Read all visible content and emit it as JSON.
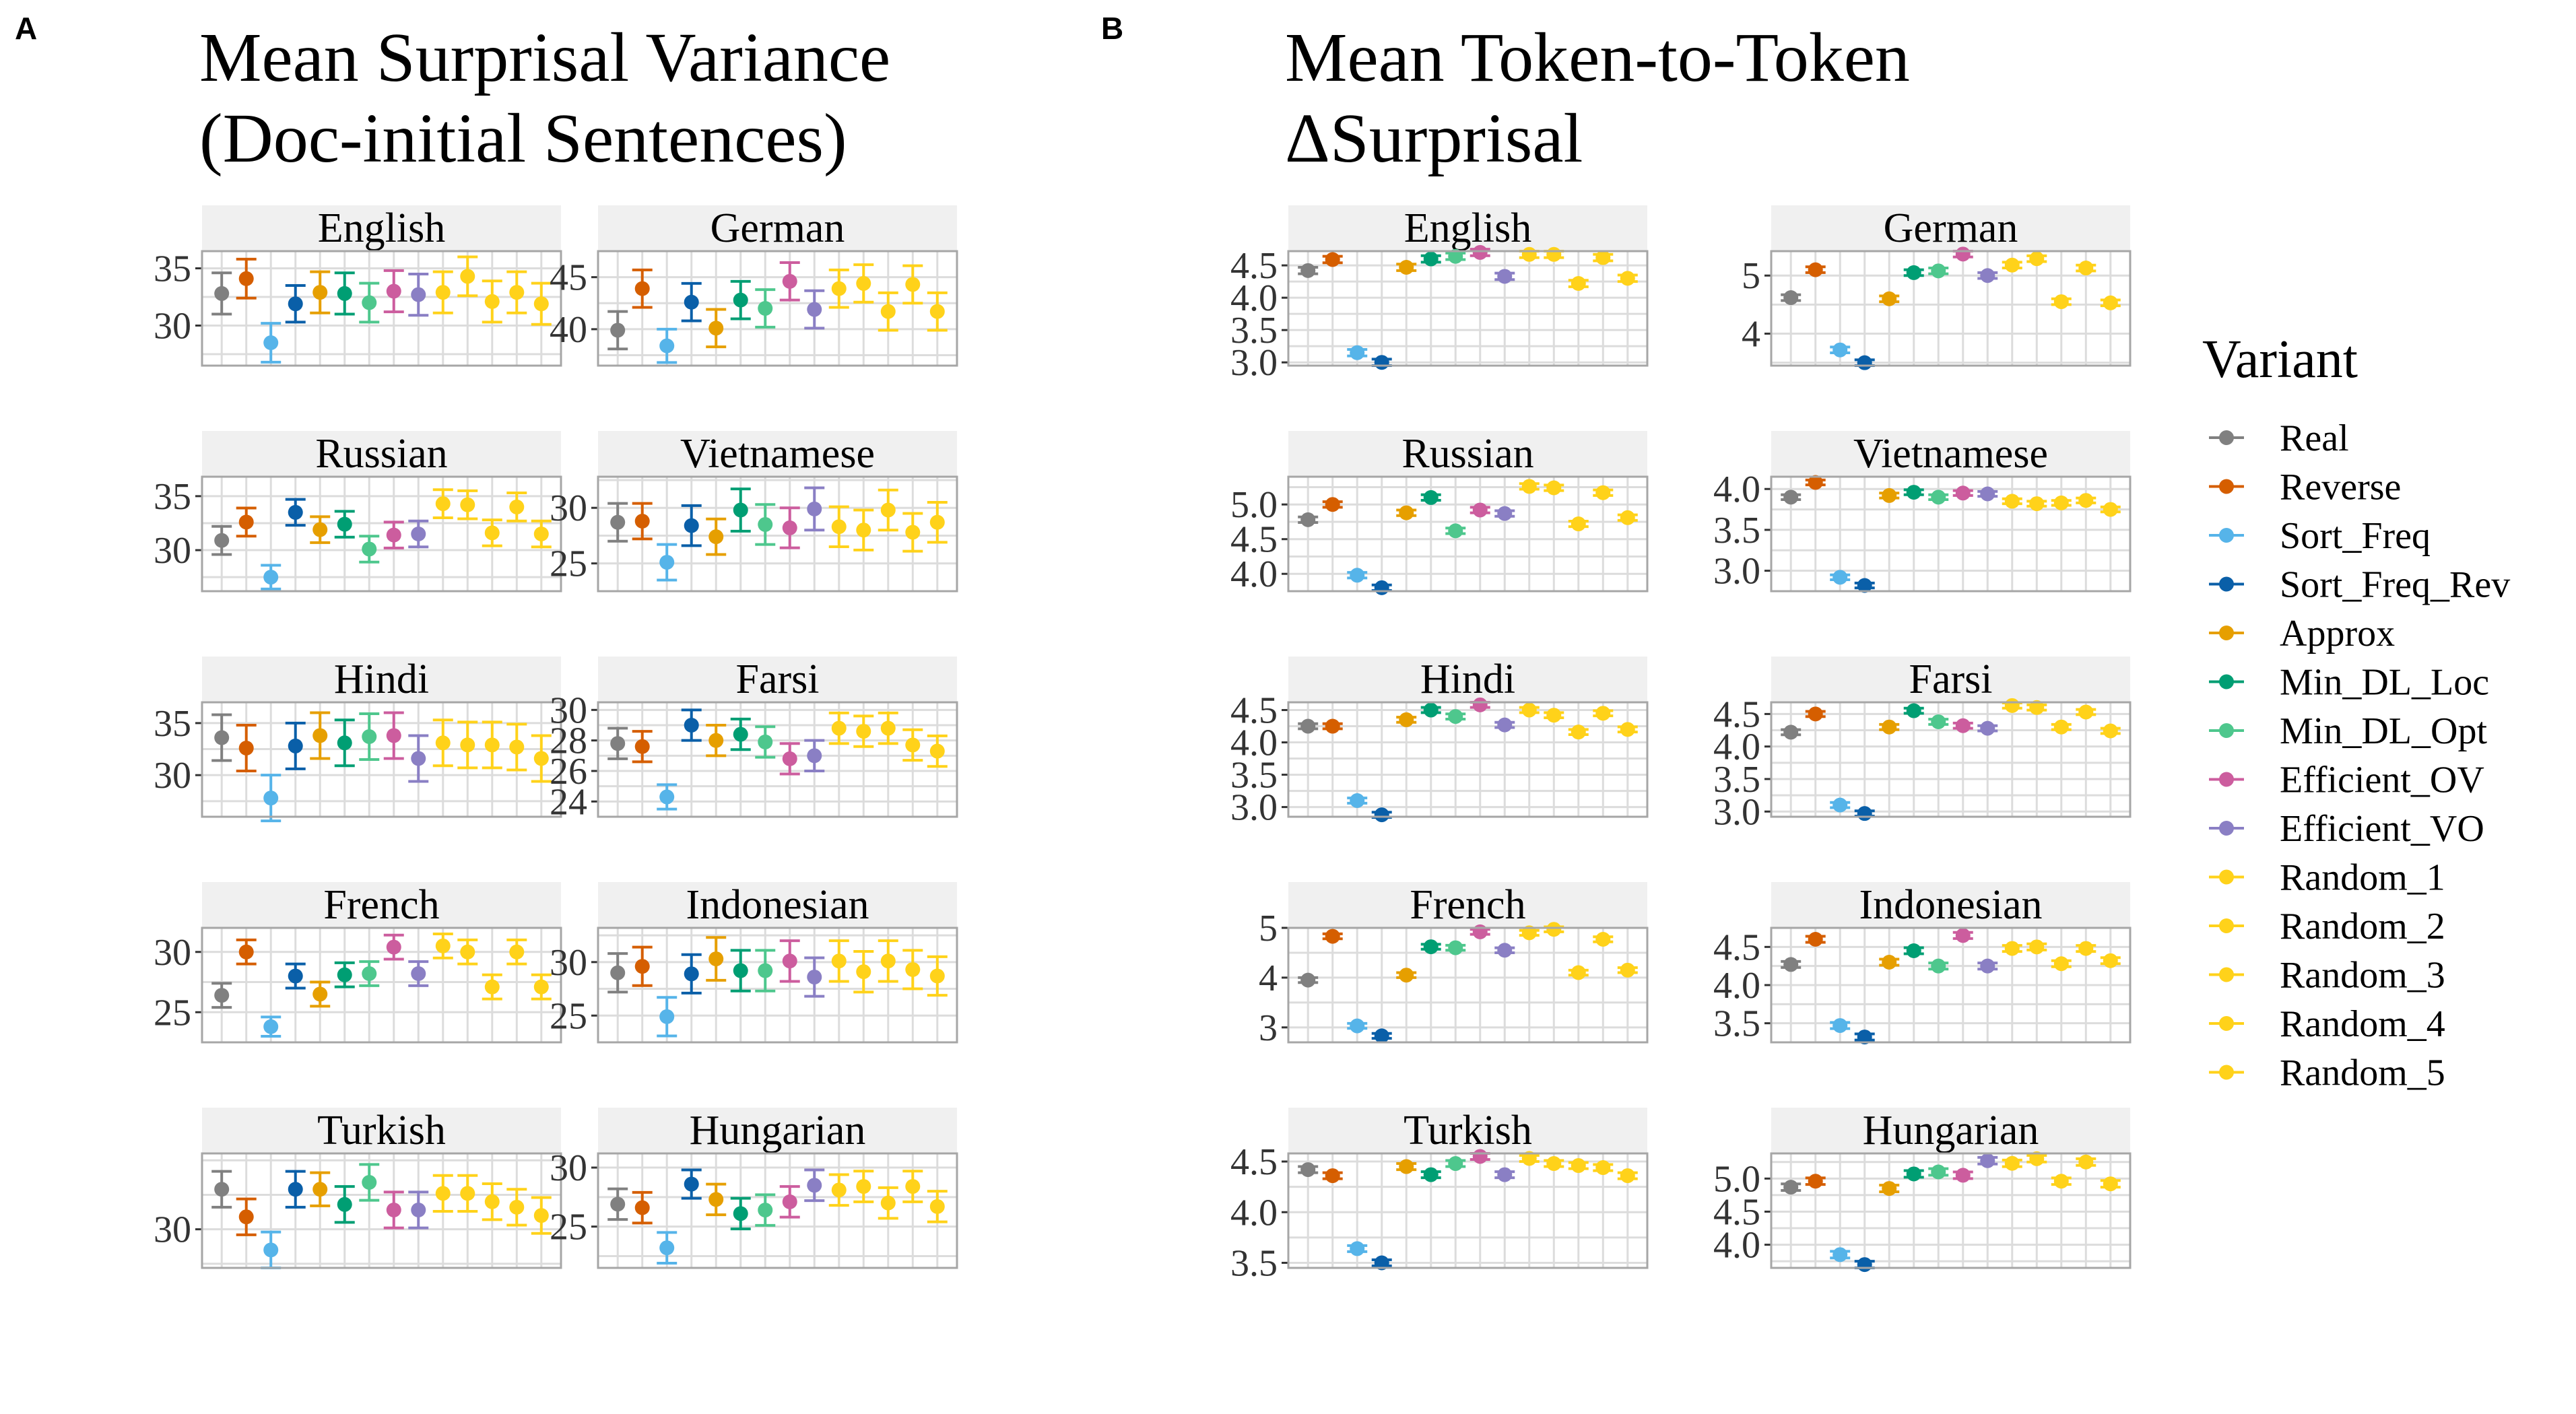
{
  "figure": {
    "panels": [
      {
        "letter": "A",
        "title_line1": "Mean Surprisal Variance",
        "title_line2": "(Doc-initial Sentences)"
      },
      {
        "letter": "B",
        "title_line1": "Mean Token-to-Token",
        "title_line2": "ΔSurprisal"
      }
    ],
    "legend": {
      "title": "Variant",
      "items": [
        {
          "label": "Real",
          "color": "#808080"
        },
        {
          "label": "Reverse",
          "color": "#D55E00"
        },
        {
          "label": "Sort_Freq",
          "color": "#56B4E9"
        },
        {
          "label": "Sort_Freq_Rev",
          "color": "#0A5FA8"
        },
        {
          "label": "Approx",
          "color": "#E69F00"
        },
        {
          "label": "Min_DL_Loc",
          "color": "#009E73"
        },
        {
          "label": "Min_DL_Opt",
          "color": "#4EC78D"
        },
        {
          "label": "Efficient_OV",
          "color": "#CC5D9E"
        },
        {
          "label": "Efficient_VO",
          "color": "#8A7FC4"
        },
        {
          "label": "Random_1",
          "color": "#FFD21A"
        },
        {
          "label": "Random_2",
          "color": "#FFD21A"
        },
        {
          "label": "Random_3",
          "color": "#FFD21A"
        },
        {
          "label": "Random_4",
          "color": "#FFD21A"
        },
        {
          "label": "Random_5",
          "color": "#FFD21A"
        }
      ]
    }
  },
  "chart_data": [
    {
      "type": "scatter",
      "panel": "A",
      "title": "Mean Surprisal Variance (Doc-initial Sentences)",
      "x_categories": [
        "Real",
        "Reverse",
        "Sort_Freq",
        "Sort_Freq_Rev",
        "Approx",
        "Min_DL_Loc",
        "Min_DL_Opt",
        "Efficient_OV",
        "Efficient_VO",
        "Random_1",
        "Random_2",
        "Random_3",
        "Random_4",
        "Random_5"
      ],
      "facets": [
        {
          "name": "English",
          "ylim": [
            26.5,
            36.5
          ],
          "yticks": [
            30,
            35
          ],
          "tick_labels": [
            "30",
            "35"
          ],
          "values": [
            32.8,
            34.1,
            28.5,
            31.9,
            32.9,
            32.8,
            32.0,
            33.0,
            32.7,
            32.9,
            34.3,
            32.1,
            32.9,
            31.9
          ],
          "errors": [
            1.8,
            1.7,
            1.7,
            1.6,
            1.8,
            1.8,
            1.7,
            1.8,
            1.8,
            1.8,
            1.7,
            1.8,
            1.8,
            1.8
          ]
        },
        {
          "name": "German",
          "ylim": [
            36.5,
            47.5
          ],
          "yticks": [
            40,
            45
          ],
          "tick_labels": [
            "40",
            "45"
          ],
          "values": [
            39.9,
            43.9,
            38.4,
            42.6,
            40.1,
            42.8,
            42.0,
            44.6,
            41.9,
            43.9,
            44.4,
            41.7,
            44.3,
            41.7
          ],
          "errors": [
            1.8,
            1.8,
            1.6,
            1.8,
            1.8,
            1.8,
            1.8,
            1.8,
            1.8,
            1.8,
            1.8,
            1.8,
            1.8,
            1.8
          ]
        },
        {
          "name": "Russian",
          "ylim": [
            26.2,
            36.8
          ],
          "yticks": [
            30,
            35
          ],
          "tick_labels": [
            "30",
            "35"
          ],
          "values": [
            30.9,
            32.6,
            27.5,
            33.5,
            31.9,
            32.4,
            30.1,
            31.4,
            31.5,
            34.3,
            34.2,
            31.6,
            34.0,
            31.5
          ],
          "errors": [
            1.3,
            1.3,
            1.1,
            1.2,
            1.2,
            1.2,
            1.2,
            1.2,
            1.2,
            1.3,
            1.3,
            1.2,
            1.3,
            1.2
          ]
        },
        {
          "name": "Vietnamese",
          "ylim": [
            22.5,
            32.8
          ],
          "yticks": [
            25,
            30
          ],
          "tick_labels": [
            "25",
            "30"
          ],
          "values": [
            28.7,
            28.8,
            25.1,
            28.4,
            27.4,
            29.8,
            28.5,
            28.2,
            29.9,
            28.3,
            28.0,
            29.8,
            27.8,
            28.7
          ],
          "errors": [
            1.7,
            1.6,
            1.6,
            1.8,
            1.6,
            1.9,
            1.8,
            1.8,
            1.9,
            1.8,
            1.8,
            1.8,
            1.7,
            1.8
          ]
        },
        {
          "name": "Hindi",
          "ylim": [
            26.0,
            37.0
          ],
          "yticks": [
            30,
            35
          ],
          "tick_labels": [
            "30",
            "35"
          ],
          "values": [
            33.6,
            32.6,
            27.8,
            32.8,
            33.8,
            33.1,
            33.7,
            33.8,
            31.6,
            33.1,
            32.9,
            32.9,
            32.7,
            31.6
          ],
          "errors": [
            2.2,
            2.2,
            2.2,
            2.2,
            2.2,
            2.2,
            2.2,
            2.2,
            2.2,
            2.2,
            2.2,
            2.2,
            2.2,
            2.2
          ]
        },
        {
          "name": "Farsi",
          "ylim": [
            23.0,
            30.5
          ],
          "yticks": [
            24,
            26,
            28,
            30
          ],
          "tick_labels": [
            "24",
            "26",
            "28",
            "30"
          ],
          "values": [
            27.8,
            27.6,
            24.3,
            29.0,
            28.0,
            28.4,
            27.9,
            26.8,
            27.0,
            28.8,
            28.6,
            28.8,
            27.7,
            27.3
          ],
          "errors": [
            1.0,
            1.0,
            0.8,
            1.0,
            1.0,
            1.0,
            1.0,
            1.0,
            1.0,
            1.0,
            1.0,
            1.0,
            1.0,
            1.0
          ]
        },
        {
          "name": "French",
          "ylim": [
            22.5,
            32.0
          ],
          "yticks": [
            25,
            30
          ],
          "tick_labels": [
            "25",
            "30"
          ],
          "values": [
            26.4,
            30.0,
            23.8,
            28.0,
            26.5,
            28.1,
            28.2,
            30.4,
            28.2,
            30.5,
            30.0,
            27.1,
            30.0,
            27.1
          ],
          "errors": [
            1.0,
            1.0,
            0.8,
            1.0,
            1.0,
            1.0,
            1.0,
            1.0,
            1.0,
            1.0,
            1.0,
            1.0,
            1.0,
            1.0
          ]
        },
        {
          "name": "Indonesian",
          "ylim": [
            22.5,
            33.2
          ],
          "yticks": [
            25,
            30
          ],
          "tick_labels": [
            "25",
            "30"
          ],
          "values": [
            29.0,
            29.6,
            24.9,
            28.9,
            30.3,
            29.2,
            29.2,
            30.1,
            28.6,
            30.1,
            29.1,
            30.1,
            29.3,
            28.7
          ],
          "errors": [
            1.8,
            1.8,
            1.8,
            1.8,
            2.0,
            1.9,
            1.9,
            1.9,
            1.8,
            1.9,
            1.9,
            1.9,
            1.8,
            1.8
          ]
        },
        {
          "name": "Turkish",
          "ylim": [
            27.2,
            35.5
          ],
          "yticks": [
            30
          ],
          "tick_labels": [
            "30"
          ],
          "values": [
            32.9,
            30.9,
            28.5,
            32.9,
            32.9,
            31.8,
            33.4,
            31.4,
            31.4,
            32.6,
            32.6,
            32.0,
            31.6,
            31.0
          ],
          "errors": [
            1.3,
            1.3,
            1.3,
            1.3,
            1.2,
            1.3,
            1.3,
            1.3,
            1.3,
            1.3,
            1.3,
            1.3,
            1.3,
            1.3
          ]
        },
        {
          "name": "Hungarian",
          "ylim": [
            21.5,
            31.2
          ],
          "yticks": [
            25,
            30
          ],
          "tick_labels": [
            "25",
            "30"
          ],
          "values": [
            26.9,
            26.6,
            23.2,
            28.6,
            27.3,
            26.1,
            26.4,
            27.1,
            28.5,
            28.1,
            28.4,
            27.0,
            28.4,
            26.7
          ],
          "errors": [
            1.3,
            1.3,
            1.3,
            1.2,
            1.3,
            1.3,
            1.3,
            1.3,
            1.3,
            1.3,
            1.3,
            1.3,
            1.3,
            1.3
          ]
        }
      ]
    },
    {
      "type": "scatter",
      "panel": "B",
      "title": "Mean Token-to-Token ΔSurprisal",
      "x_categories": [
        "Real",
        "Reverse",
        "Sort_Freq",
        "Sort_Freq_Rev",
        "Approx",
        "Min_DL_Loc",
        "Min_DL_Opt",
        "Efficient_OV",
        "Efficient_VO",
        "Random_1",
        "Random_2",
        "Random_3",
        "Random_4",
        "Random_5"
      ],
      "facets": [
        {
          "name": "English",
          "ylim": [
            2.95,
            4.72
          ],
          "yticks": [
            3.0,
            3.5,
            4.0,
            4.5
          ],
          "tick_labels": [
            "3.0",
            "3.5",
            "4.0",
            "4.5"
          ],
          "values": [
            4.42,
            4.59,
            3.15,
            3.0,
            4.47,
            4.6,
            4.64,
            4.7,
            4.33,
            4.67,
            4.67,
            4.22,
            4.62,
            4.3
          ],
          "errors": [
            0.05,
            0.05,
            0.05,
            0.05,
            0.05,
            0.05,
            0.05,
            0.05,
            0.05,
            0.05,
            0.05,
            0.05,
            0.05,
            0.05
          ]
        },
        {
          "name": "German",
          "ylim": [
            3.45,
            5.42
          ],
          "yticks": [
            4,
            5
          ],
          "tick_labels": [
            "4",
            "5"
          ],
          "values": [
            4.62,
            5.1,
            3.72,
            3.5,
            4.6,
            5.05,
            5.08,
            5.37,
            5.0,
            5.18,
            5.29,
            4.55,
            5.13,
            4.53
          ],
          "errors": [
            0.05,
            0.05,
            0.05,
            0.05,
            0.05,
            0.05,
            0.05,
            0.05,
            0.05,
            0.05,
            0.05,
            0.05,
            0.05,
            0.05
          ]
        },
        {
          "name": "Russian",
          "ylim": [
            3.75,
            5.4
          ],
          "yticks": [
            4.0,
            4.5,
            5.0
          ],
          "tick_labels": [
            "4.0",
            "4.5",
            "5.0"
          ],
          "values": [
            4.78,
            5.0,
            3.98,
            3.8,
            4.88,
            5.1,
            4.62,
            4.92,
            4.87,
            5.26,
            5.24,
            4.72,
            5.17,
            4.81
          ],
          "errors": [
            0.04,
            0.04,
            0.04,
            0.04,
            0.04,
            0.04,
            0.04,
            0.04,
            0.04,
            0.04,
            0.04,
            0.04,
            0.04,
            0.04
          ]
        },
        {
          "name": "Vietnamese",
          "ylim": [
            2.75,
            4.15
          ],
          "yticks": [
            3.0,
            3.5,
            4.0
          ],
          "tick_labels": [
            "3.0",
            "3.5",
            "4.0"
          ],
          "values": [
            3.9,
            4.08,
            2.92,
            2.82,
            3.92,
            3.96,
            3.9,
            3.95,
            3.94,
            3.85,
            3.82,
            3.83,
            3.86,
            3.75
          ],
          "errors": [
            0.03,
            0.03,
            0.03,
            0.03,
            0.03,
            0.03,
            0.03,
            0.03,
            0.03,
            0.03,
            0.03,
            0.03,
            0.03,
            0.03
          ]
        },
        {
          "name": "Hindi",
          "ylim": [
            2.85,
            4.62
          ],
          "yticks": [
            3.0,
            3.5,
            4.0,
            4.5
          ],
          "tick_labels": [
            "3.0",
            "3.5",
            "4.0",
            "4.5"
          ],
          "values": [
            4.25,
            4.25,
            3.1,
            2.88,
            4.35,
            4.5,
            4.4,
            4.58,
            4.27,
            4.5,
            4.42,
            4.16,
            4.45,
            4.2
          ],
          "errors": [
            0.04,
            0.04,
            0.04,
            0.04,
            0.04,
            0.04,
            0.04,
            0.04,
            0.04,
            0.04,
            0.04,
            0.04,
            0.04,
            0.04
          ]
        },
        {
          "name": "Farsi",
          "ylim": [
            2.92,
            4.68
          ],
          "yticks": [
            3.0,
            3.5,
            4.0,
            4.5
          ],
          "tick_labels": [
            "3.0",
            "3.5",
            "4.0",
            "4.5"
          ],
          "values": [
            4.22,
            4.5,
            3.1,
            2.97,
            4.3,
            4.55,
            4.38,
            4.32,
            4.28,
            4.63,
            4.6,
            4.3,
            4.53,
            4.24
          ],
          "errors": [
            0.04,
            0.04,
            0.04,
            0.04,
            0.04,
            0.04,
            0.04,
            0.04,
            0.04,
            0.04,
            0.04,
            0.04,
            0.04,
            0.04
          ]
        },
        {
          "name": "French",
          "ylim": [
            2.7,
            5.0
          ],
          "yticks": [
            3,
            4,
            5
          ],
          "tick_labels": [
            "3",
            "4",
            "5"
          ],
          "values": [
            3.95,
            4.83,
            3.03,
            2.83,
            4.05,
            4.62,
            4.6,
            4.92,
            4.55,
            4.9,
            4.97,
            4.1,
            4.77,
            4.15
          ],
          "errors": [
            0.05,
            0.05,
            0.05,
            0.05,
            0.05,
            0.05,
            0.05,
            0.05,
            0.05,
            0.05,
            0.05,
            0.05,
            0.05,
            0.05
          ]
        },
        {
          "name": "Indonesian",
          "ylim": [
            3.25,
            4.75
          ],
          "yticks": [
            3.5,
            4.0,
            4.5
          ],
          "tick_labels": [
            "3.5",
            "4.0",
            "4.5"
          ],
          "values": [
            4.27,
            4.6,
            3.47,
            3.32,
            4.3,
            4.45,
            4.25,
            4.65,
            4.25,
            4.48,
            4.5,
            4.28,
            4.48,
            4.32
          ],
          "errors": [
            0.04,
            0.04,
            0.04,
            0.04,
            0.04,
            0.04,
            0.04,
            0.04,
            0.04,
            0.04,
            0.04,
            0.04,
            0.04,
            0.04
          ]
        },
        {
          "name": "Turkish",
          "ylim": [
            3.45,
            4.58
          ],
          "yticks": [
            3.5,
            4.0,
            4.5
          ],
          "tick_labels": [
            "3.5",
            "4.0",
            "4.5"
          ],
          "values": [
            4.42,
            4.36,
            3.64,
            3.5,
            4.45,
            4.37,
            4.48,
            4.55,
            4.37,
            4.53,
            4.48,
            4.46,
            4.44,
            4.36
          ],
          "errors": [
            0.03,
            0.03,
            0.03,
            0.03,
            0.03,
            0.03,
            0.03,
            0.03,
            0.03,
            0.03,
            0.03,
            0.03,
            0.03,
            0.03
          ]
        },
        {
          "name": "Hungarian",
          "ylim": [
            3.65,
            5.38
          ],
          "yticks": [
            4.0,
            4.5,
            5.0
          ],
          "tick_labels": [
            "4.0",
            "4.5",
            "5.0"
          ],
          "values": [
            4.87,
            4.96,
            3.85,
            3.7,
            4.85,
            5.07,
            5.1,
            5.05,
            5.27,
            5.23,
            5.3,
            4.96,
            5.25,
            4.92
          ],
          "errors": [
            0.05,
            0.05,
            0.05,
            0.05,
            0.05,
            0.05,
            0.05,
            0.05,
            0.05,
            0.05,
            0.05,
            0.05,
            0.05,
            0.05
          ]
        }
      ]
    }
  ]
}
